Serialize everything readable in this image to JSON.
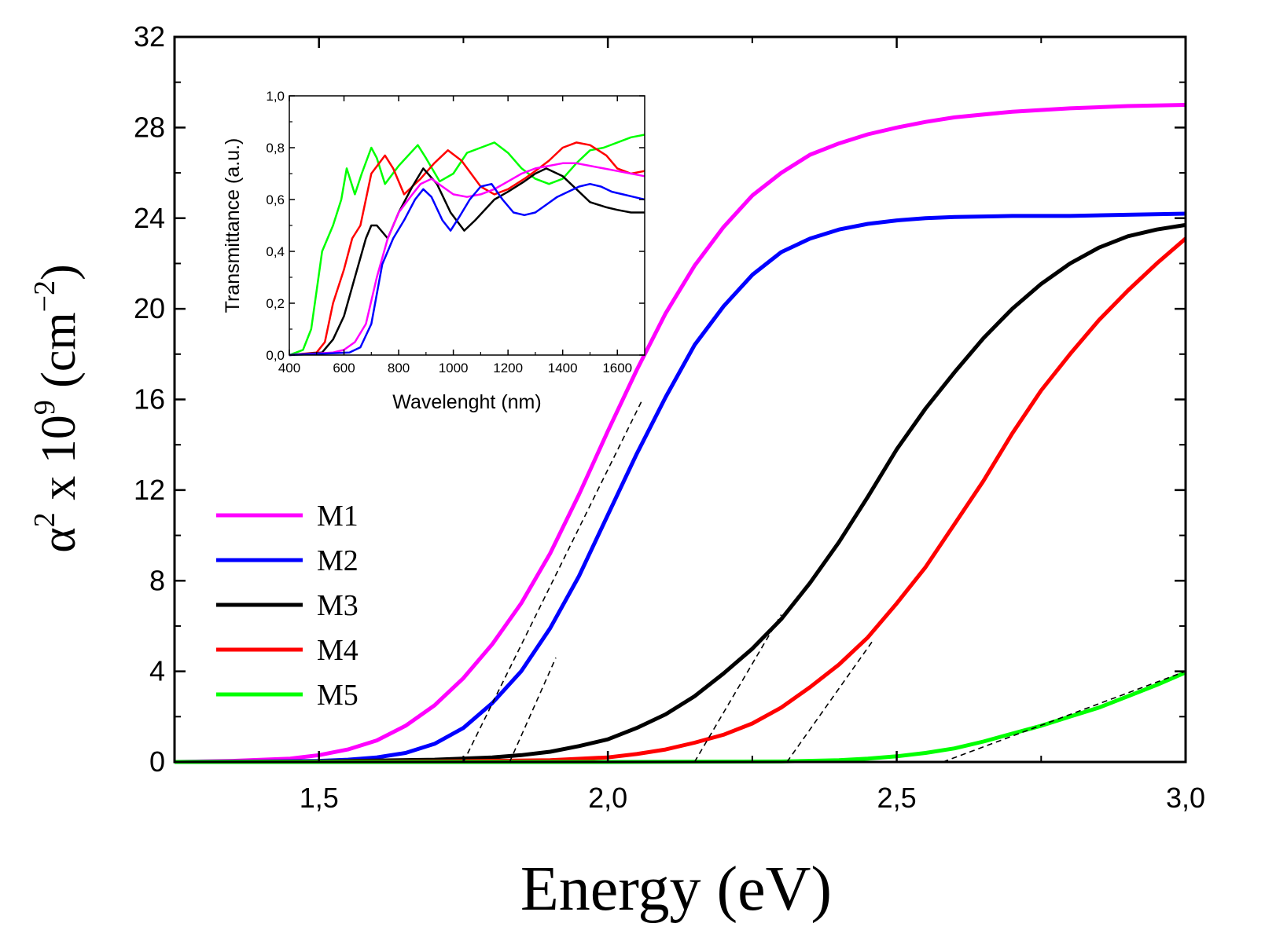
{
  "chart_data": [
    {
      "type": "line",
      "id": "main",
      "xlabel": "Energy (eV)",
      "ylabel": {
        "prefix": "α",
        "sup1": "2",
        "mid": " x 10",
        "sup2": "9",
        "unit": " (cm",
        "unit_sup": "−2",
        "close": ")"
      },
      "xlim": [
        1.25,
        3.0
      ],
      "ylim": [
        0,
        32
      ],
      "xticks": [
        1.5,
        2.0,
        2.5,
        3.0
      ],
      "xtick_labels": [
        "1,5",
        "2,0",
        "2,5",
        "3,0"
      ],
      "yticks": [
        0,
        4,
        8,
        12,
        16,
        20,
        24,
        28,
        32
      ],
      "ytick_labels": [
        "0",
        "4",
        "8",
        "12",
        "16",
        "20",
        "24",
        "28",
        "32"
      ],
      "legend_position": "left-middle",
      "series": [
        {
          "name": "M1",
          "color": "#ff00ff",
          "x": [
            1.25,
            1.35,
            1.45,
            1.5,
            1.55,
            1.6,
            1.65,
            1.7,
            1.75,
            1.8,
            1.85,
            1.9,
            1.95,
            2.0,
            2.05,
            2.1,
            2.15,
            2.2,
            2.25,
            2.3,
            2.35,
            2.4,
            2.45,
            2.5,
            2.55,
            2.6,
            2.7,
            2.8,
            2.9,
            3.0
          ],
          "y": [
            0.0,
            0.05,
            0.15,
            0.3,
            0.55,
            0.95,
            1.6,
            2.5,
            3.7,
            5.2,
            7.0,
            9.2,
            11.8,
            14.6,
            17.3,
            19.8,
            21.9,
            23.6,
            25.0,
            26.0,
            26.8,
            27.3,
            27.7,
            28.0,
            28.25,
            28.45,
            28.7,
            28.85,
            28.95,
            29.0
          ]
        },
        {
          "name": "M2",
          "color": "#0000ff",
          "x": [
            1.25,
            1.4,
            1.5,
            1.55,
            1.6,
            1.65,
            1.7,
            1.75,
            1.8,
            1.85,
            1.9,
            1.95,
            2.0,
            2.05,
            2.1,
            2.15,
            2.2,
            2.25,
            2.3,
            2.35,
            2.4,
            2.45,
            2.5,
            2.55,
            2.6,
            2.7,
            2.8,
            2.9,
            3.0
          ],
          "y": [
            0.0,
            0.02,
            0.05,
            0.1,
            0.2,
            0.4,
            0.8,
            1.5,
            2.6,
            4.0,
            5.9,
            8.2,
            10.9,
            13.6,
            16.1,
            18.4,
            20.1,
            21.5,
            22.5,
            23.1,
            23.5,
            23.75,
            23.9,
            24.0,
            24.05,
            24.1,
            24.1,
            24.15,
            24.2
          ]
        },
        {
          "name": "M3",
          "color": "#000000",
          "x": [
            1.25,
            1.5,
            1.7,
            1.8,
            1.85,
            1.9,
            1.95,
            2.0,
            2.05,
            2.1,
            2.15,
            2.2,
            2.25,
            2.3,
            2.35,
            2.4,
            2.45,
            2.5,
            2.55,
            2.6,
            2.65,
            2.7,
            2.75,
            2.8,
            2.85,
            2.9,
            2.95,
            3.0
          ],
          "y": [
            0.0,
            0.02,
            0.1,
            0.2,
            0.3,
            0.45,
            0.7,
            1.0,
            1.5,
            2.1,
            2.9,
            3.9,
            5.0,
            6.3,
            7.9,
            9.7,
            11.7,
            13.8,
            15.6,
            17.2,
            18.7,
            20.0,
            21.1,
            22.0,
            22.7,
            23.2,
            23.5,
            23.7
          ]
        },
        {
          "name": "M4",
          "color": "#ff0000",
          "x": [
            1.25,
            1.7,
            1.9,
            2.0,
            2.05,
            2.1,
            2.15,
            2.2,
            2.25,
            2.3,
            2.35,
            2.4,
            2.45,
            2.5,
            2.55,
            2.6,
            2.65,
            2.7,
            2.75,
            2.8,
            2.85,
            2.9,
            2.95,
            3.0
          ],
          "y": [
            0.0,
            0.02,
            0.08,
            0.2,
            0.35,
            0.55,
            0.85,
            1.2,
            1.7,
            2.4,
            3.3,
            4.3,
            5.5,
            7.0,
            8.6,
            10.5,
            12.4,
            14.5,
            16.4,
            18.0,
            19.5,
            20.8,
            22.0,
            23.1
          ]
        },
        {
          "name": "M5",
          "color": "#00ff00",
          "x": [
            1.25,
            2.0,
            2.3,
            2.4,
            2.45,
            2.5,
            2.55,
            2.6,
            2.65,
            2.7,
            2.75,
            2.8,
            2.85,
            2.9,
            2.95,
            3.0
          ],
          "y": [
            0.0,
            0.0,
            0.02,
            0.08,
            0.15,
            0.25,
            0.4,
            0.6,
            0.9,
            1.25,
            1.6,
            2.0,
            2.4,
            2.9,
            3.4,
            3.95
          ]
        }
      ],
      "tangent_lines": [
        {
          "series": "M1",
          "x": [
            1.75,
            2.06
          ],
          "y": [
            0,
            16.0
          ]
        },
        {
          "series": "M2",
          "x": [
            1.83,
            1.91
          ],
          "y": [
            0,
            4.6
          ]
        },
        {
          "series": "M3",
          "x": [
            2.15,
            2.3
          ],
          "y": [
            0,
            6.5
          ]
        },
        {
          "series": "M4",
          "x": [
            2.31,
            2.46
          ],
          "y": [
            0,
            5.4
          ]
        },
        {
          "series": "M5",
          "x": [
            2.58,
            3.0
          ],
          "y": [
            0,
            4.0
          ]
        }
      ]
    },
    {
      "type": "line",
      "id": "inset",
      "xlabel": "Wavelenght (nm)",
      "ylabel": "Transmittance (a.u.)",
      "xlim": [
        400,
        1700
      ],
      "ylim": [
        0.0,
        1.0
      ],
      "xticks": [
        400,
        600,
        800,
        1000,
        1200,
        1400,
        1600
      ],
      "xtick_labels": [
        "400",
        "600",
        "800",
        "1000",
        "1200",
        "1400",
        "1600"
      ],
      "yticks": [
        0.0,
        0.2,
        0.4,
        0.6,
        0.8,
        1.0
      ],
      "ytick_labels": [
        "0,0",
        "0,2",
        "0,4",
        "0,6",
        "0,8",
        "1,0"
      ],
      "series": [
        {
          "name": "M5",
          "color": "#00ff00",
          "x": [
            400,
            450,
            480,
            500,
            520,
            560,
            590,
            610,
            640,
            665,
            700,
            720,
            750,
            800,
            870,
            900,
            950,
            1000,
            1050,
            1100,
            1150,
            1200,
            1250,
            1300,
            1350,
            1400,
            1450,
            1500,
            1550,
            1600,
            1650,
            1700
          ],
          "y": [
            0.0,
            0.02,
            0.1,
            0.25,
            0.4,
            0.5,
            0.6,
            0.72,
            0.62,
            0.7,
            0.8,
            0.76,
            0.66,
            0.73,
            0.81,
            0.76,
            0.67,
            0.7,
            0.78,
            0.8,
            0.82,
            0.78,
            0.72,
            0.68,
            0.66,
            0.68,
            0.74,
            0.79,
            0.8,
            0.82,
            0.84,
            0.85
          ]
        },
        {
          "name": "M4",
          "color": "#ff0000",
          "x": [
            400,
            500,
            530,
            560,
            600,
            630,
            660,
            700,
            750,
            780,
            820,
            880,
            930,
            980,
            1030,
            1100,
            1150,
            1200,
            1260,
            1300,
            1350,
            1400,
            1450,
            1500,
            1560,
            1600,
            1650,
            1700
          ],
          "y": [
            0.0,
            0.01,
            0.05,
            0.2,
            0.33,
            0.45,
            0.5,
            0.7,
            0.77,
            0.72,
            0.62,
            0.68,
            0.74,
            0.79,
            0.75,
            0.65,
            0.62,
            0.64,
            0.68,
            0.71,
            0.75,
            0.8,
            0.82,
            0.81,
            0.77,
            0.72,
            0.7,
            0.71
          ]
        },
        {
          "name": "M3",
          "color": "#000000",
          "x": [
            400,
            520,
            560,
            600,
            640,
            680,
            700,
            720,
            760,
            800,
            850,
            890,
            940,
            990,
            1040,
            1080,
            1150,
            1200,
            1260,
            1300,
            1340,
            1400,
            1450,
            1500,
            1560,
            1600,
            1650,
            1700
          ],
          "y": [
            0.0,
            0.01,
            0.06,
            0.15,
            0.3,
            0.45,
            0.5,
            0.5,
            0.45,
            0.55,
            0.65,
            0.72,
            0.66,
            0.55,
            0.48,
            0.52,
            0.6,
            0.63,
            0.67,
            0.7,
            0.72,
            0.69,
            0.64,
            0.59,
            0.57,
            0.56,
            0.55,
            0.55
          ]
        },
        {
          "name": "M1",
          "color": "#ff00ff",
          "x": [
            400,
            560,
            600,
            640,
            680,
            720,
            760,
            800,
            850,
            880,
            920,
            960,
            1000,
            1050,
            1100,
            1150,
            1200,
            1250,
            1300,
            1350,
            1400,
            1450,
            1500,
            1550,
            1600,
            1650,
            1700
          ],
          "y": [
            0.0,
            0.01,
            0.02,
            0.05,
            0.12,
            0.3,
            0.45,
            0.55,
            0.62,
            0.66,
            0.68,
            0.65,
            0.62,
            0.61,
            0.62,
            0.64,
            0.67,
            0.7,
            0.72,
            0.73,
            0.74,
            0.74,
            0.73,
            0.72,
            0.71,
            0.7,
            0.69
          ]
        },
        {
          "name": "M2",
          "color": "#0000ff",
          "x": [
            400,
            620,
            660,
            700,
            740,
            780,
            820,
            860,
            890,
            920,
            960,
            990,
            1020,
            1060,
            1100,
            1140,
            1180,
            1220,
            1260,
            1300,
            1340,
            1380,
            1420,
            1460,
            1500,
            1540,
            1580,
            1620,
            1660,
            1700
          ],
          "y": [
            0.0,
            0.01,
            0.03,
            0.12,
            0.35,
            0.45,
            0.52,
            0.6,
            0.64,
            0.61,
            0.52,
            0.48,
            0.53,
            0.6,
            0.65,
            0.66,
            0.6,
            0.55,
            0.54,
            0.55,
            0.58,
            0.61,
            0.63,
            0.65,
            0.66,
            0.65,
            0.63,
            0.62,
            0.61,
            0.6
          ]
        }
      ]
    }
  ]
}
